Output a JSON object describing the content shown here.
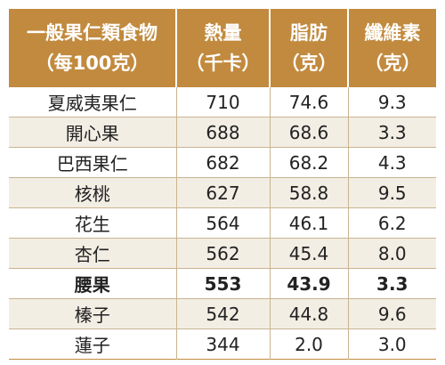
{
  "header": {
    "col1": [
      "一般果仁類食物",
      "（每100克）"
    ],
    "col2": [
      "熱量",
      "（千卡）"
    ],
    "col3": [
      "脂肪",
      "（克）"
    ],
    "col4": [
      "纖維素",
      "（克）"
    ]
  },
  "rows": [
    {
      "name": "夏威夷果仁",
      "kcal": "710",
      "fat": "74.6",
      "fiber": "9.3"
    },
    {
      "name": "開心果",
      "kcal": "688",
      "fat": "68.6",
      "fiber": "3.3"
    },
    {
      "name": "巴西果仁",
      "kcal": "682",
      "fat": "68.2",
      "fiber": "4.3"
    },
    {
      "name": "核桃",
      "kcal": "627",
      "fat": "58.8",
      "fiber": "9.5"
    },
    {
      "name": "花生",
      "kcal": "564",
      "fat": "46.1",
      "fiber": "6.2"
    },
    {
      "name": "杏仁",
      "kcal": "562",
      "fat": "45.4",
      "fiber": "8.0"
    },
    {
      "name": "腰果",
      "kcal": "553",
      "fat": "43.9",
      "fiber": "3.3"
    },
    {
      "name": "榛子",
      "kcal": "542",
      "fat": "44.8",
      "fiber": "9.6"
    },
    {
      "name": "蓮子",
      "kcal": "344",
      "fat": "2.0",
      "fiber": "3.0"
    }
  ],
  "colors": {
    "header_bg": "#c28a3e",
    "header_text": "#ffffff",
    "stripe": "#f3eee4"
  }
}
